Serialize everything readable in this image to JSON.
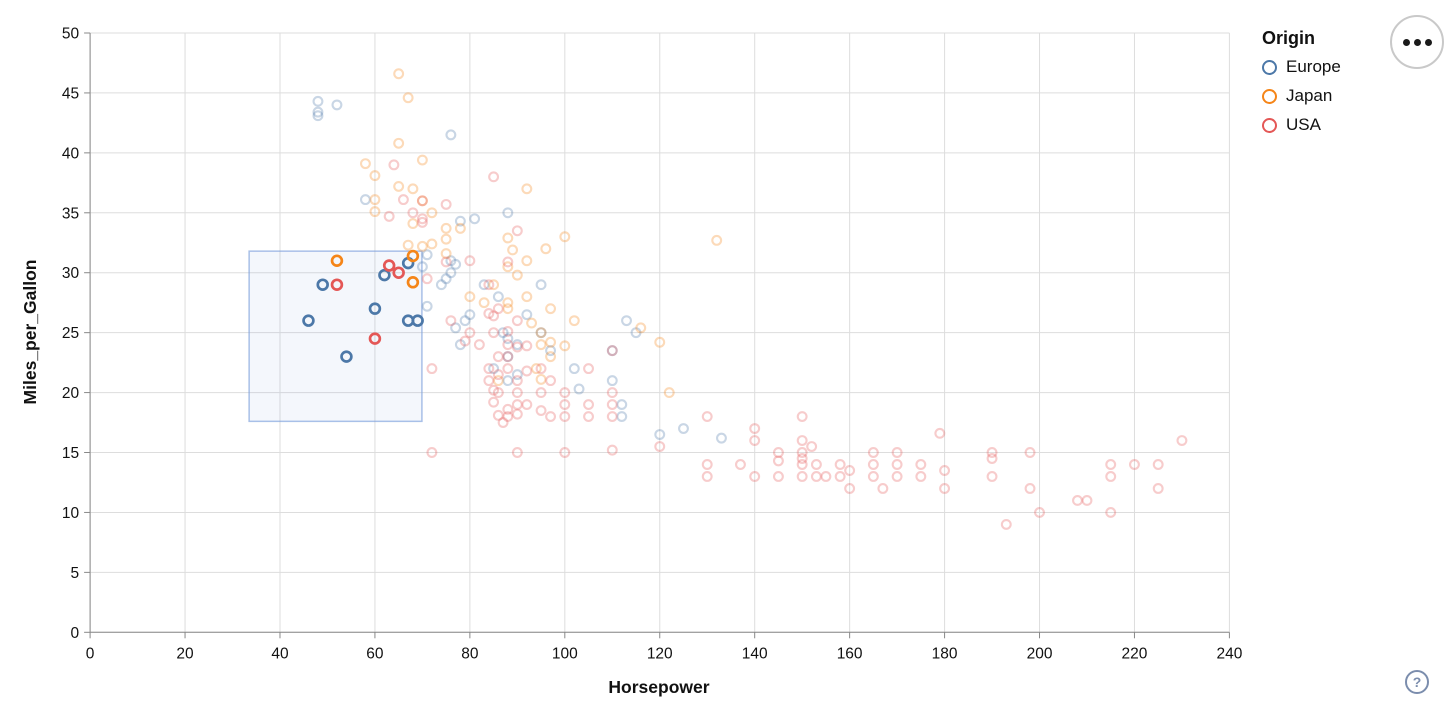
{
  "legend": {
    "title": "Origin",
    "entries": [
      {
        "label": "Europe",
        "color": "#4c78a8"
      },
      {
        "label": "Japan",
        "color": "#f58518"
      },
      {
        "label": "USA",
        "color": "#e45756"
      }
    ]
  },
  "controls": {
    "menu_button": "actions-menu",
    "help_label": "?"
  },
  "chart_data": {
    "type": "scatter",
    "title": "",
    "xlabel": "Horsepower",
    "ylabel": "Miles_per_Gallon",
    "xlim": [
      0,
      240
    ],
    "ylim": [
      0,
      50
    ],
    "x_ticks": [
      0,
      20,
      40,
      60,
      80,
      100,
      120,
      140,
      160,
      180,
      200,
      220,
      240
    ],
    "y_ticks": [
      0,
      5,
      10,
      15,
      20,
      25,
      30,
      35,
      40,
      45,
      50
    ],
    "grid": true,
    "legend_position": "top-right-outside",
    "point_shape": "open-circle",
    "unselected_opacity": 0.3,
    "brush_extent": {
      "x": [
        33.5,
        69.9
      ],
      "y": [
        17.6,
        31.8
      ]
    },
    "brush_style": {
      "fill": "rgba(100,140,210,0.07)",
      "stroke": "rgba(125,160,220,0.65)"
    },
    "axis_color": "#888888",
    "grid_color": "#dddddd",
    "series": [
      {
        "name": "Europe",
        "color": "#4c78a8",
        "selected": [
          [
            46,
            26
          ],
          [
            49,
            29
          ],
          [
            54,
            23
          ],
          [
            60,
            27
          ],
          [
            62,
            29.8
          ],
          [
            67,
            30.8
          ],
          [
            67,
            26
          ],
          [
            69,
            26
          ]
        ],
        "unselected": [
          [
            87,
            25
          ],
          [
            90,
            24
          ],
          [
            95,
            25
          ],
          [
            113,
            26
          ],
          [
            88,
            24.5
          ],
          [
            76,
            30
          ],
          [
            70,
            30.5
          ],
          [
            76,
            31
          ],
          [
            83,
            29
          ],
          [
            78,
            24
          ],
          [
            80,
            26.5
          ],
          [
            88,
            21
          ],
          [
            112,
            18
          ],
          [
            112,
            19
          ],
          [
            110,
            21
          ],
          [
            103,
            20.3
          ],
          [
            125,
            17
          ],
          [
            133,
            16.2
          ],
          [
            120,
            16.5
          ],
          [
            95,
            29
          ],
          [
            88,
            23
          ],
          [
            75,
            29.5
          ],
          [
            71,
            27.2
          ],
          [
            86,
            28
          ],
          [
            79,
            26
          ],
          [
            97,
            23.5
          ],
          [
            90,
            21.5
          ],
          [
            102,
            22
          ],
          [
            58,
            36.1
          ],
          [
            78,
            34.3
          ],
          [
            71,
            31.5
          ],
          [
            81,
            34.5
          ],
          [
            77,
            30.7
          ],
          [
            77,
            25.4
          ],
          [
            48,
            43.4
          ],
          [
            48,
            44.3
          ],
          [
            48,
            43.1
          ],
          [
            52,
            44
          ],
          [
            76,
            41.5
          ],
          [
            115,
            25
          ],
          [
            110,
            23.5
          ],
          [
            85,
            22
          ],
          [
            92,
            26.5
          ],
          [
            74,
            29
          ],
          [
            88,
            35
          ]
        ]
      },
      {
        "name": "Japan",
        "color": "#f58518",
        "selected": [
          [
            52,
            31
          ],
          [
            68,
            31.4
          ],
          [
            68,
            29.2
          ]
        ],
        "unselected": [
          [
            88,
            27
          ],
          [
            88,
            27.5
          ],
          [
            92,
            28
          ],
          [
            95,
            24
          ],
          [
            97,
            27
          ],
          [
            97,
            23
          ],
          [
            86,
            21
          ],
          [
            122,
            20
          ],
          [
            132,
            32.7
          ],
          [
            65,
            46.6
          ],
          [
            67,
            44.6
          ],
          [
            65,
            40.8
          ],
          [
            58,
            39.1
          ],
          [
            70,
            39.4
          ],
          [
            60,
            36.1
          ],
          [
            68,
            34.1
          ],
          [
            65,
            37.2
          ],
          [
            60,
            38.1
          ],
          [
            75,
            31.6
          ],
          [
            72,
            32.4
          ],
          [
            75,
            32.8
          ],
          [
            68,
            37
          ],
          [
            97,
            24.2
          ],
          [
            94,
            22
          ],
          [
            95,
            21.1
          ],
          [
            95,
            25
          ],
          [
            60,
            35.1
          ],
          [
            67,
            32.3
          ],
          [
            75,
            33.7
          ],
          [
            70,
            32.2
          ],
          [
            120,
            24.2
          ],
          [
            116,
            25.4
          ],
          [
            92,
            37
          ],
          [
            93,
            25.8
          ],
          [
            88,
            30.5
          ],
          [
            92,
            31
          ],
          [
            80,
            28
          ],
          [
            78,
            33.7
          ],
          [
            88,
            32.9
          ],
          [
            100,
            23.9
          ],
          [
            90,
            29.8
          ],
          [
            96,
            32
          ],
          [
            100,
            33
          ],
          [
            85,
            29
          ],
          [
            72,
            35
          ],
          [
            70,
            36
          ],
          [
            83,
            27.5
          ],
          [
            102,
            26
          ],
          [
            89,
            31.9
          ]
        ]
      },
      {
        "name": "USA",
        "color": "#e45756",
        "selected": [
          [
            52,
            29
          ],
          [
            63,
            30.6
          ],
          [
            65,
            30
          ],
          [
            60,
            24.5
          ]
        ],
        "unselected": [
          [
            193,
            9
          ],
          [
            200,
            10
          ],
          [
            215,
            10
          ],
          [
            210,
            11
          ],
          [
            208,
            11
          ],
          [
            180,
            12
          ],
          [
            160,
            12
          ],
          [
            198,
            12
          ],
          [
            225,
            12
          ],
          [
            167,
            12
          ],
          [
            170,
            13
          ],
          [
            175,
            13
          ],
          [
            190,
            13
          ],
          [
            150,
            13
          ],
          [
            153,
            13
          ],
          [
            155,
            13
          ],
          [
            158,
            13
          ],
          [
            130,
            13
          ],
          [
            140,
            13
          ],
          [
            145,
            13
          ],
          [
            165,
            13
          ],
          [
            215,
            13
          ],
          [
            180,
            13.5
          ],
          [
            160,
            13.5
          ],
          [
            220,
            14
          ],
          [
            215,
            14
          ],
          [
            225,
            14
          ],
          [
            150,
            14
          ],
          [
            153,
            14
          ],
          [
            137,
            14
          ],
          [
            158,
            14
          ],
          [
            165,
            14
          ],
          [
            175,
            14
          ],
          [
            190,
            14.5
          ],
          [
            170,
            14
          ],
          [
            145,
            14.3
          ],
          [
            150,
            14.5
          ],
          [
            130,
            14
          ],
          [
            165,
            15
          ],
          [
            198,
            15
          ],
          [
            190,
            15
          ],
          [
            170,
            15
          ],
          [
            150,
            15
          ],
          [
            145,
            15
          ],
          [
            152,
            15.5
          ],
          [
            230,
            16
          ],
          [
            140,
            16
          ],
          [
            150,
            16
          ],
          [
            120,
            15.5
          ],
          [
            110,
            15.2
          ],
          [
            72,
            15
          ],
          [
            90,
            15
          ],
          [
            100,
            15
          ],
          [
            179,
            16.6
          ],
          [
            130,
            18
          ],
          [
            150,
            18
          ],
          [
            140,
            17
          ],
          [
            110,
            18
          ],
          [
            110,
            19
          ],
          [
            105,
            18
          ],
          [
            100,
            18
          ],
          [
            100,
            19
          ],
          [
            97,
            18
          ],
          [
            105,
            19
          ],
          [
            95,
            18.5
          ],
          [
            88,
            18
          ],
          [
            90,
            18.2
          ],
          [
            92,
            19
          ],
          [
            86,
            18.1
          ],
          [
            88,
            18.6
          ],
          [
            90,
            19
          ],
          [
            87,
            17.5
          ],
          [
            86,
            20
          ],
          [
            85,
            19.2
          ],
          [
            95,
            20
          ],
          [
            90,
            20
          ],
          [
            85,
            20.2
          ],
          [
            84,
            21
          ],
          [
            90,
            21
          ],
          [
            86,
            21.5
          ],
          [
            95,
            22
          ],
          [
            105,
            22
          ],
          [
            100,
            20
          ],
          [
            88,
            22
          ],
          [
            72,
            22
          ],
          [
            97,
            21
          ],
          [
            110,
            20
          ],
          [
            84,
            22
          ],
          [
            92,
            21.8
          ],
          [
            88,
            23
          ],
          [
            86,
            23
          ],
          [
            90,
            23.8
          ],
          [
            88,
            24
          ],
          [
            85,
            25
          ],
          [
            88,
            25.1
          ],
          [
            84,
            26.6
          ],
          [
            85,
            26.4
          ],
          [
            90,
            26
          ],
          [
            76,
            26
          ],
          [
            80,
            25
          ],
          [
            79,
            24.3
          ],
          [
            82,
            24
          ],
          [
            86,
            27
          ],
          [
            92,
            23.9
          ],
          [
            110,
            23.5
          ],
          [
            71,
            29.5
          ],
          [
            75,
            30.9
          ],
          [
            70,
            34.2
          ],
          [
            70,
            34.5
          ],
          [
            64,
            39
          ],
          [
            66,
            36.1
          ],
          [
            85,
            38
          ],
          [
            90,
            33.5
          ],
          [
            80,
            31
          ],
          [
            84,
            29
          ],
          [
            70,
            36
          ],
          [
            75,
            35.7
          ],
          [
            68,
            35
          ],
          [
            63,
            34.7
          ],
          [
            88,
            30.9
          ]
        ]
      }
    ]
  }
}
